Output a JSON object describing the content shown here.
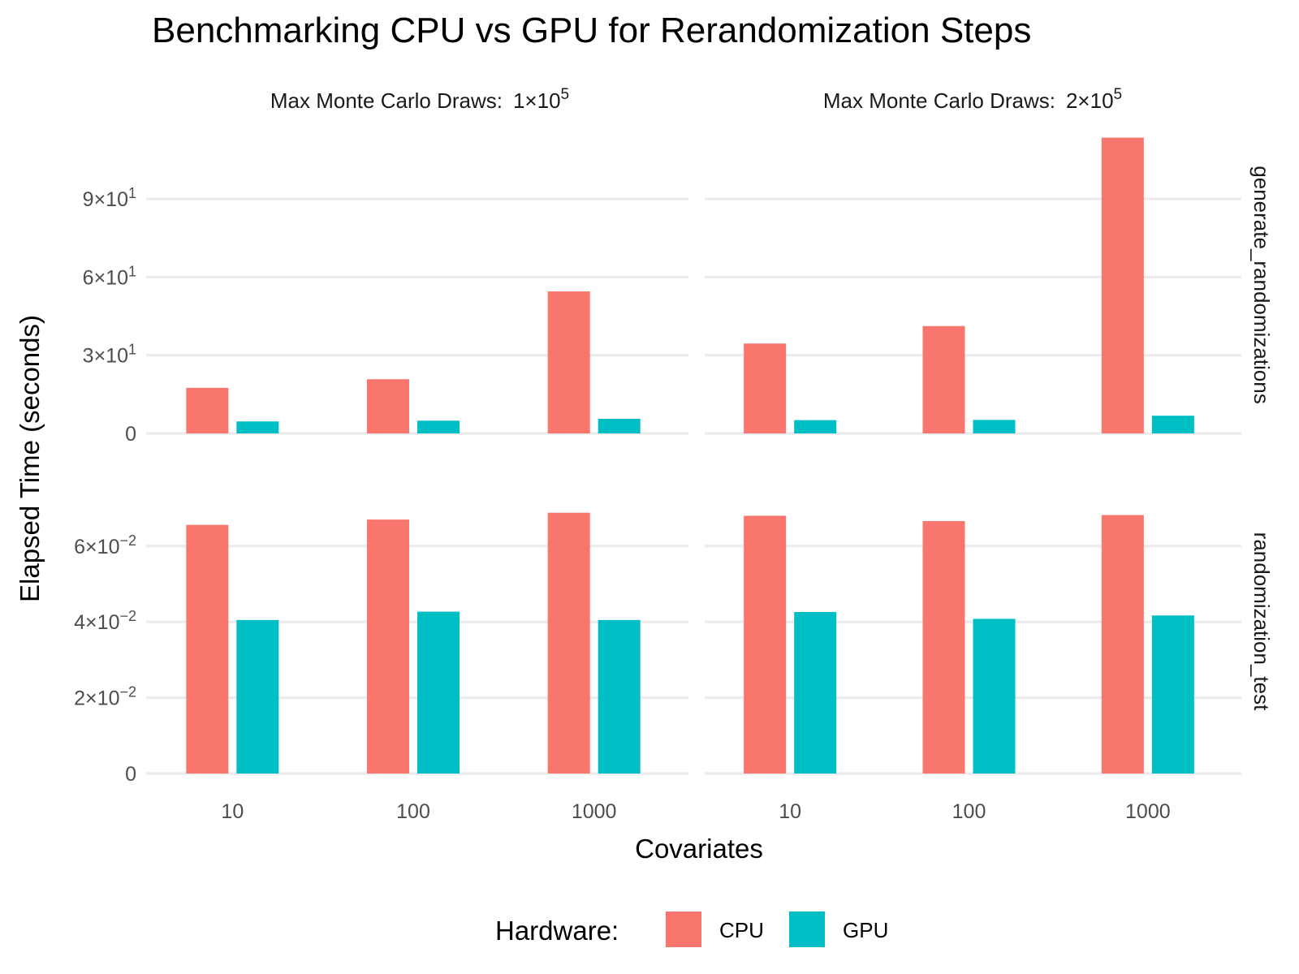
{
  "chart_data": {
    "type": "bar",
    "title": "Benchmarking CPU vs GPU for Rerandomization Steps",
    "xlabel": "Covariates",
    "ylabel": "Elapsed Time (seconds)",
    "categories": [
      "10",
      "100",
      "1000"
    ],
    "columns": [
      {
        "strip": "Max Monte Carlo Draws:",
        "strip_math": {
          "mantissa": "1",
          "base": "10",
          "exp": "5"
        }
      },
      {
        "strip": "Max Monte Carlo Draws:",
        "strip_math": {
          "mantissa": "2",
          "base": "10",
          "exp": "5"
        }
      }
    ],
    "rows": [
      {
        "strip": "generate_randomizations",
        "ylim": [
          0,
          114
        ],
        "yticks": [
          {
            "value": 0,
            "mantissa": "0",
            "exp": ""
          },
          {
            "value": 30,
            "mantissa": "3",
            "exp": "1"
          },
          {
            "value": 60,
            "mantissa": "6",
            "exp": "1"
          },
          {
            "value": 90,
            "mantissa": "9",
            "exp": "1"
          }
        ],
        "panels": [
          {
            "series": [
              {
                "name": "CPU",
                "values": [
                  17.5,
                  20.8,
                  54.5
                ]
              },
              {
                "name": "GPU",
                "values": [
                  4.6,
                  4.9,
                  5.6
                ]
              }
            ]
          },
          {
            "series": [
              {
                "name": "CPU",
                "values": [
                  34.5,
                  41.2,
                  113.5
                ]
              },
              {
                "name": "GPU",
                "values": [
                  5.1,
                  5.2,
                  6.8
                ]
              }
            ]
          }
        ]
      },
      {
        "strip": "randomization_test",
        "ylim": [
          0,
          0.0803
        ],
        "yticks": [
          {
            "value": 0,
            "mantissa": "0",
            "exp": ""
          },
          {
            "value": 0.02,
            "mantissa": "2",
            "exp": "−2"
          },
          {
            "value": 0.04,
            "mantissa": "4",
            "exp": "−2"
          },
          {
            "value": 0.06,
            "mantissa": "6",
            "exp": "−2"
          }
        ],
        "panels": [
          {
            "series": [
              {
                "name": "CPU",
                "values": [
                  0.0656,
                  0.067,
                  0.0688
                ]
              },
              {
                "name": "GPU",
                "values": [
                  0.0405,
                  0.0427,
                  0.0405
                ]
              }
            ]
          },
          {
            "series": [
              {
                "name": "CPU",
                "values": [
                  0.068,
                  0.0666,
                  0.0682
                ]
              },
              {
                "name": "GPU",
                "values": [
                  0.0426,
                  0.0408,
                  0.0417
                ]
              }
            ]
          }
        ]
      }
    ],
    "legend": {
      "title": "Hardware:",
      "placement": "bottom",
      "items": [
        {
          "label": "CPU",
          "color": "#F8766D"
        },
        {
          "label": "GPU",
          "color": "#00BFC4"
        }
      ]
    },
    "grid": true
  }
}
